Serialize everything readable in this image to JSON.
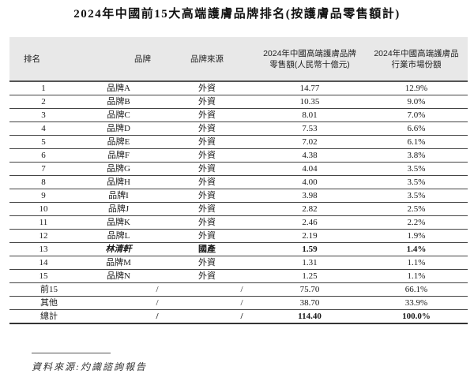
{
  "title": "2024年中國前15大高端護膚品牌排名(按護膚品零售額計)",
  "table": {
    "headers": {
      "rank": "排名",
      "brand": "品牌",
      "origin": "品牌來源",
      "sales_line1": "2024年中國高端護膚品牌",
      "sales_line2": "零售額(人民幣十億元)",
      "share_line1": "2024年中國高端護膚品",
      "share_line2": "行業市場份額"
    },
    "rows": [
      {
        "rank": "1",
        "brand": "品牌A",
        "origin": "外資",
        "sales": "14.77",
        "share": "12.9%"
      },
      {
        "rank": "2",
        "brand": "品牌B",
        "origin": "外資",
        "sales": "10.35",
        "share": "9.0%"
      },
      {
        "rank": "3",
        "brand": "品牌C",
        "origin": "外資",
        "sales": "8.01",
        "share": "7.0%"
      },
      {
        "rank": "4",
        "brand": "品牌D",
        "origin": "外資",
        "sales": "7.53",
        "share": "6.6%"
      },
      {
        "rank": "5",
        "brand": "品牌E",
        "origin": "外資",
        "sales": "7.02",
        "share": "6.1%"
      },
      {
        "rank": "6",
        "brand": "品牌F",
        "origin": "外資",
        "sales": "4.38",
        "share": "3.8%"
      },
      {
        "rank": "7",
        "brand": "品牌G",
        "origin": "外資",
        "sales": "4.04",
        "share": "3.5%"
      },
      {
        "rank": "8",
        "brand": "品牌H",
        "origin": "外資",
        "sales": "4.00",
        "share": "3.5%"
      },
      {
        "rank": "9",
        "brand": "品牌I",
        "origin": "外資",
        "sales": "3.98",
        "share": "3.5%"
      },
      {
        "rank": "10",
        "brand": "品牌J",
        "origin": "外資",
        "sales": "2.82",
        "share": "2.5%"
      },
      {
        "rank": "11",
        "brand": "品牌K",
        "origin": "外資",
        "sales": "2.46",
        "share": "2.2%"
      },
      {
        "rank": "12",
        "brand": "品牌L",
        "origin": "外資",
        "sales": "2.19",
        "share": "1.9%"
      },
      {
        "rank": "13",
        "brand": "林清軒",
        "origin": "國產",
        "sales": "1.59",
        "share": "1.4%"
      },
      {
        "rank": "14",
        "brand": "品牌M",
        "origin": "外資",
        "sales": "1.31",
        "share": "1.1%"
      },
      {
        "rank": "15",
        "brand": "品牌N",
        "origin": "外資",
        "sales": "1.25",
        "share": "1.1%"
      }
    ],
    "summary": [
      {
        "rank": "前15",
        "brand": "/",
        "origin": "/",
        "sales": "75.70",
        "share": "66.1%"
      },
      {
        "rank": "其他",
        "brand": "/",
        "origin": "/",
        "sales": "38.70",
        "share": "33.9%"
      },
      {
        "rank": "總計",
        "brand": "/",
        "origin": "/",
        "sales": "114.40",
        "share": "100.0%"
      }
    ]
  },
  "footnote": {
    "source": "資料來源:灼識諮詢報告"
  }
}
